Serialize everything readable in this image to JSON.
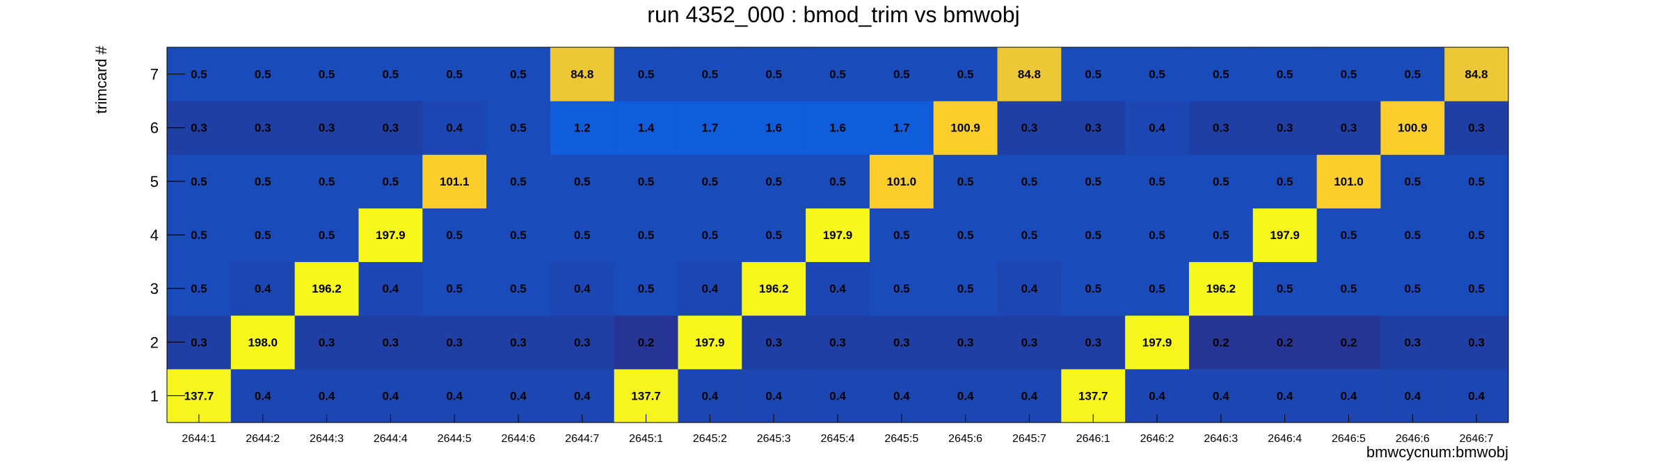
{
  "chart_data": {
    "type": "heatmap",
    "title": "run 4352_000 : bmod_trim vs bmwobj",
    "xlabel": "bmwcycnum:bmwobj",
    "ylabel": "trimcard #",
    "x_categories": [
      "2644:1",
      "2644:2",
      "2644:3",
      "2644:4",
      "2644:5",
      "2644:6",
      "2644:7",
      "2645:1",
      "2645:2",
      "2645:3",
      "2645:4",
      "2645:5",
      "2645:6",
      "2645:7",
      "2646:1",
      "2646:2",
      "2646:3",
      "2646:4",
      "2646:5",
      "2646:6",
      "2646:7"
    ],
    "y_categories": [
      "1",
      "2",
      "3",
      "4",
      "5",
      "6",
      "7"
    ],
    "values": [
      [
        137.7,
        0.4,
        0.4,
        0.4,
        0.4,
        0.4,
        0.4,
        137.7,
        0.4,
        0.4,
        0.4,
        0.4,
        0.4,
        0.4,
        137.7,
        0.4,
        0.4,
        0.4,
        0.4,
        0.4,
        0.4
      ],
      [
        0.3,
        198.0,
        0.3,
        0.3,
        0.3,
        0.3,
        0.3,
        0.2,
        197.9,
        0.3,
        0.3,
        0.3,
        0.3,
        0.3,
        0.3,
        197.9,
        0.2,
        0.2,
        0.2,
        0.3,
        0.3
      ],
      [
        0.5,
        0.4,
        196.2,
        0.4,
        0.5,
        0.5,
        0.4,
        0.5,
        0.4,
        196.2,
        0.4,
        0.5,
        0.5,
        0.4,
        0.5,
        0.5,
        196.2,
        0.5,
        0.5,
        0.5,
        0.5
      ],
      [
        0.5,
        0.5,
        0.5,
        197.9,
        0.5,
        0.5,
        0.5,
        0.5,
        0.5,
        0.5,
        197.9,
        0.5,
        0.5,
        0.5,
        0.5,
        0.5,
        0.5,
        197.9,
        0.5,
        0.5,
        0.5
      ],
      [
        0.5,
        0.5,
        0.5,
        0.5,
        101.1,
        0.5,
        0.5,
        0.5,
        0.5,
        0.5,
        0.5,
        101.0,
        0.5,
        0.5,
        0.5,
        0.5,
        0.5,
        0.5,
        101.0,
        0.5,
        0.5
      ],
      [
        0.3,
        0.3,
        0.3,
        0.3,
        0.4,
        0.5,
        1.2,
        1.4,
        1.7,
        1.6,
        1.6,
        1.7,
        100.9,
        0.3,
        0.3,
        0.4,
        0.3,
        0.3,
        0.3,
        100.9,
        0.3
      ],
      [
        0.5,
        0.5,
        0.5,
        0.5,
        0.5,
        0.5,
        84.8,
        0.5,
        0.5,
        0.5,
        0.5,
        0.5,
        0.5,
        84.8,
        0.5,
        0.5,
        0.5,
        0.5,
        0.5,
        0.5,
        84.8
      ]
    ],
    "colorscale": "log",
    "colors": {
      "low": "#263593",
      "mid_low": "#0f5ddb",
      "mid": "#118ad2",
      "mid_high": "#fbcc2c",
      "high": "#f7f71d"
    },
    "legend": "none",
    "grid": false
  }
}
